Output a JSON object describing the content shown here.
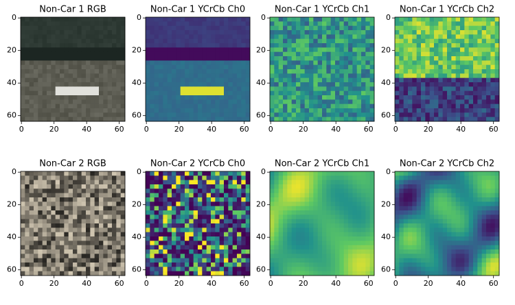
{
  "chart_data": [
    {
      "type": "image",
      "title": "Non-Car 1 RGB",
      "xlim": [
        -0.5,
        63.5
      ],
      "ylim": [
        63.5,
        -0.5
      ],
      "xticks": [
        0,
        20,
        40,
        60
      ],
      "yticks": [
        0,
        20,
        40,
        60
      ]
    },
    {
      "type": "image",
      "title": "Non-Car 1 YCrCb Ch0",
      "xlim": [
        -0.5,
        63.5
      ],
      "ylim": [
        63.5,
        -0.5
      ],
      "xticks": [
        0,
        20,
        40,
        60
      ],
      "yticks": [
        0,
        20,
        40,
        60
      ]
    },
    {
      "type": "image",
      "title": "Non-Car 1 YCrCb Ch1",
      "xlim": [
        -0.5,
        63.5
      ],
      "ylim": [
        63.5,
        -0.5
      ],
      "xticks": [
        0,
        20,
        40,
        60
      ],
      "yticks": [
        0,
        20,
        40,
        60
      ]
    },
    {
      "type": "image",
      "title": "Non-Car 1 YCrCb Ch2",
      "xlim": [
        -0.5,
        63.5
      ],
      "ylim": [
        63.5,
        -0.5
      ],
      "xticks": [
        0,
        20,
        40,
        60
      ],
      "yticks": [
        0,
        20,
        40,
        60
      ]
    },
    {
      "type": "image",
      "title": "Non-Car 2 RGB",
      "xlim": [
        -0.5,
        63.5
      ],
      "ylim": [
        63.5,
        -0.5
      ],
      "xticks": [
        0,
        20,
        40,
        60
      ],
      "yticks": [
        0,
        20,
        40,
        60
      ]
    },
    {
      "type": "image",
      "title": "Non-Car 2 YCrCb Ch0",
      "xlim": [
        -0.5,
        63.5
      ],
      "ylim": [
        63.5,
        -0.5
      ],
      "xticks": [
        0,
        20,
        40,
        60
      ],
      "yticks": [
        0,
        20,
        40,
        60
      ]
    },
    {
      "type": "image",
      "title": "Non-Car 2 YCrCb Ch1",
      "xlim": [
        -0.5,
        63.5
      ],
      "ylim": [
        63.5,
        -0.5
      ],
      "xticks": [
        0,
        20,
        40,
        60
      ],
      "yticks": [
        0,
        20,
        40,
        60
      ]
    },
    {
      "type": "image",
      "title": "Non-Car 2 YCrCb Ch2",
      "xlim": [
        -0.5,
        63.5
      ],
      "ylim": [
        63.5,
        -0.5
      ],
      "xticks": [
        0,
        20,
        40,
        60
      ],
      "yticks": [
        0,
        20,
        40,
        60
      ]
    }
  ]
}
